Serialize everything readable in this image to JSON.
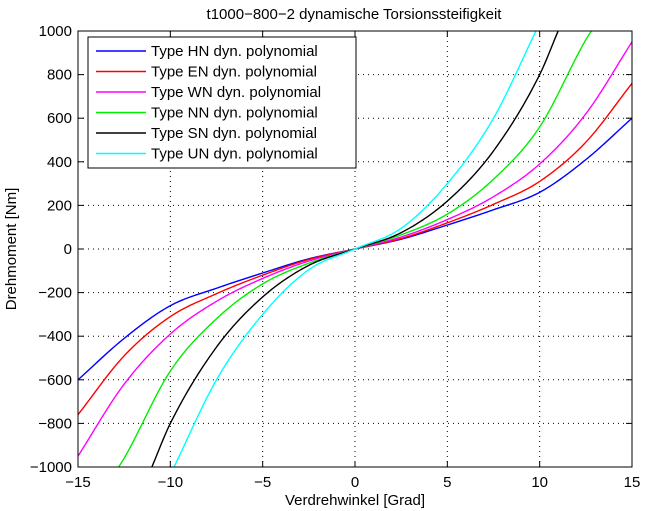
{
  "chart_data": {
    "type": "line",
    "title": "t1000−800−2 dynamische Torsionssteifigkeit",
    "xlabel": "Verdrehwinkel [Grad]",
    "ylabel": "Drehmoment [Nm]",
    "xlim": [
      -15,
      15
    ],
    "ylim": [
      -1000,
      1000
    ],
    "xticks": [
      -15,
      -10,
      -5,
      0,
      5,
      10,
      15
    ],
    "xtick_labels": [
      "−15",
      "−10",
      "−5",
      "0",
      "5",
      "10",
      "15"
    ],
    "yticks": [
      -1000,
      -800,
      -600,
      -400,
      -200,
      0,
      200,
      400,
      600,
      800,
      1000
    ],
    "ytick_labels": [
      "−1000",
      "−800",
      "−600",
      "−400",
      "−200",
      "0",
      "200",
      "400",
      "600",
      "800",
      "1000"
    ],
    "grid": true,
    "legend_position": "top-left",
    "series": [
      {
        "name": "Type HN dyn. polynomial",
        "color": "#0000ff",
        "x": [
          0,
          2.5,
          5,
          7.5,
          10,
          12.5,
          15
        ],
        "y": [
          0,
          45,
          110,
          180,
          260,
          410,
          600
        ]
      },
      {
        "name": "Type EN dyn. polynomial",
        "color": "#ff0000",
        "x": [
          0,
          2.5,
          5,
          7.5,
          10,
          12.5,
          15
        ],
        "y": [
          0,
          48,
          120,
          205,
          310,
          490,
          760
        ]
      },
      {
        "name": "Type WN dyn. polynomial",
        "color": "#ff00ff",
        "x": [
          0,
          2.5,
          5,
          7.5,
          10,
          12.5,
          15
        ],
        "y": [
          0,
          55,
          135,
          240,
          390,
          620,
          950
        ]
      },
      {
        "name": "Type NN dyn. polynomial",
        "color": "#00ee00",
        "x": [
          0,
          2.5,
          5,
          7.5,
          10,
          12.5,
          12.8
        ],
        "y": [
          0,
          65,
          160,
          320,
          560,
          960,
          1000
        ]
      },
      {
        "name": "Type SN dyn. polynomial",
        "color": "#000000",
        "x": [
          0,
          2.5,
          5,
          7.5,
          10,
          11.0
        ],
        "y": [
          0,
          75,
          220,
          450,
          800,
          1000
        ]
      },
      {
        "name": "Type UN dyn. polynomial",
        "color": "#00ffff",
        "x": [
          0,
          2.5,
          5,
          7.5,
          9.8
        ],
        "y": [
          0,
          95,
          300,
          600,
          1000
        ]
      }
    ]
  }
}
